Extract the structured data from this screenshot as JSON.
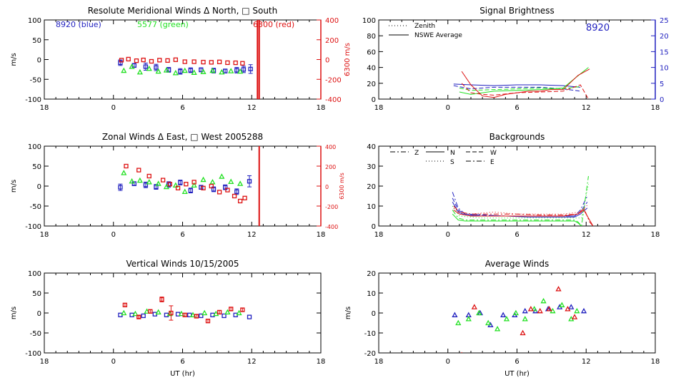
{
  "colors": {
    "blue": "#1f1fbf",
    "green": "#22e022",
    "red": "#dd1111",
    "axis": "#000000",
    "background": "#ffffff"
  },
  "chart_data": [
    {
      "id": "meridional",
      "type": "scatter",
      "title": "Resolute Meridional Winds Δ North, □ South",
      "xlabel": "",
      "ylabel": "m/s",
      "xlim": [
        18,
        42
      ],
      "x_tick_values": [
        18,
        24,
        30,
        36,
        42
      ],
      "x_tick_labels": [
        "18",
        "0",
        "6",
        "12",
        "18"
      ],
      "ylim": [
        -100,
        100
      ],
      "y_tick_values": [
        -100,
        -50,
        0,
        50,
        100
      ],
      "y2label": "6300 m/s",
      "y2lim": [
        -400,
        400
      ],
      "y2_tick_values": [
        -400,
        -200,
        0,
        200,
        400
      ],
      "y2_tick_labels": [
        "-400",
        "-200",
        "0",
        "200",
        "400"
      ],
      "legend_texts": [
        {
          "text": "8920 (blue)",
          "color": "blue"
        },
        {
          "text": "5577 (green)",
          "color": "green"
        },
        {
          "text": "6300 (red)",
          "color": "red"
        }
      ],
      "series": [
        {
          "color": "blue",
          "x": [
            24.6,
            25.8,
            26.8,
            27.7,
            28.8,
            29.8,
            30.7,
            31.6,
            32.7,
            33.7,
            34.7,
            35.3,
            35.9
          ],
          "y": [
            -8,
            -15,
            -18,
            -20,
            -26,
            -30,
            -27,
            -26,
            -28,
            -29,
            -27,
            -25,
            -24
          ],
          "err": [
            7,
            5,
            9,
            8,
            6,
            7,
            6,
            5,
            6,
            5,
            7,
            8,
            11
          ]
        },
        {
          "color": "green",
          "x": [
            24.9,
            25.6,
            26.3,
            27.1,
            27.9,
            28.6,
            29.4,
            30.2,
            31.0,
            31.8,
            32.6,
            33.4,
            34.2,
            35.0
          ],
          "y": [
            -28,
            -18,
            -32,
            -23,
            -30,
            -27,
            -34,
            -28,
            -33,
            -31,
            -28,
            -32,
            -29,
            -30
          ]
        },
        {
          "color": "red",
          "x": [
            24.7,
            25.3,
            26.0,
            26.6,
            27.3,
            28.0,
            28.7,
            29.4,
            30.2,
            31.0,
            31.8,
            32.5,
            33.2,
            33.9,
            34.6,
            35.2
          ],
          "y": [
            -6,
            4,
            -12,
            -4,
            -18,
            -6,
            -10,
            -2,
            -22,
            -22,
            -26,
            -28,
            -24,
            -32,
            -33,
            -38
          ]
        }
      ],
      "vlines": [
        {
          "x": 36.5,
          "color": "red"
        },
        {
          "x": 36.65,
          "color": "red"
        }
      ]
    },
    {
      "id": "zonal",
      "type": "scatter",
      "title": "Zonal Winds Δ East, □ West 2005288",
      "xlabel": "",
      "ylabel": "m/s",
      "xlim": [
        18,
        42
      ],
      "x_tick_values": [
        18,
        24,
        30,
        36,
        42
      ],
      "x_tick_labels": [
        "18",
        "0",
        "6",
        "12",
        "18"
      ],
      "ylim": [
        -100,
        100
      ],
      "y_tick_values": [
        -100,
        -50,
        0,
        50,
        100
      ],
      "y2label": "6300 m/s",
      "y2lim": [
        -400,
        400
      ],
      "y2_tick_values": [
        -400,
        -200,
        0,
        200,
        400
      ],
      "y2_tick_labels": [
        "-400",
        "-200",
        "0",
        "200",
        "400"
      ],
      "series": [
        {
          "color": "blue",
          "x": [
            24.6,
            25.8,
            26.8,
            27.7,
            28.8,
            29.8,
            30.7,
            31.6,
            32.7,
            33.7,
            34.7,
            35.8
          ],
          "y": [
            -3,
            6,
            3,
            -2,
            4,
            9,
            -11,
            -3,
            -8,
            -3,
            -14,
            12
          ],
          "err": [
            8,
            5,
            7,
            6,
            7,
            6,
            6,
            5,
            6,
            6,
            7,
            14
          ]
        },
        {
          "color": "green",
          "x": [
            24.9,
            25.6,
            26.3,
            27.1,
            27.9,
            28.6,
            29.4,
            30.2,
            31.0,
            31.8,
            32.6,
            33.4,
            34.2,
            35.0
          ],
          "y": [
            33,
            12,
            14,
            10,
            6,
            -2,
            2,
            -14,
            2,
            16,
            10,
            24,
            11,
            6
          ]
        },
        {
          "color": "red",
          "x": [
            25.1,
            26.2,
            27.1,
            28.3,
            28.9,
            29.6,
            30.3,
            31.0,
            31.8,
            32.5,
            33.2,
            33.9,
            34.5,
            35.0,
            35.4
          ],
          "y": [
            200,
            160,
            100,
            60,
            20,
            -20,
            20,
            40,
            -20,
            0,
            -60,
            -40,
            -100,
            -150,
            -120
          ]
        }
      ],
      "vlines": [
        {
          "x": 36.65,
          "color": "red"
        }
      ]
    },
    {
      "id": "vertical",
      "type": "scatter",
      "title": "Vertical Winds 10/15/2005",
      "xlabel": "UT (hr)",
      "ylabel": "m/s",
      "xlim": [
        18,
        42
      ],
      "x_tick_values": [
        18,
        24,
        30,
        36,
        42
      ],
      "x_tick_labels": [
        "18",
        "0",
        "6",
        "12",
        "18"
      ],
      "ylim": [
        -100,
        100
      ],
      "y_tick_values": [
        -100,
        -50,
        0,
        50,
        100
      ],
      "series": [
        {
          "color": "blue",
          "x": [
            24.6,
            25.6,
            26.6,
            27.6,
            28.6,
            29.6,
            30.6,
            31.6,
            32.6,
            33.6,
            34.6,
            35.8
          ],
          "y": [
            -5,
            -5,
            -7,
            -3,
            -5,
            -3,
            -5,
            -7,
            -5,
            -7,
            -5,
            -10
          ]
        },
        {
          "color": "green",
          "x": [
            24.9,
            25.9,
            26.9,
            27.9,
            28.9,
            29.9,
            30.9,
            31.9,
            32.9,
            33.9,
            34.9
          ],
          "y": [
            0,
            -2,
            4,
            2,
            -2,
            -2,
            -5,
            0,
            -2,
            2,
            0
          ]
        },
        {
          "color": "red",
          "x": [
            25.0,
            26.2,
            27.2,
            28.2,
            29.0,
            30.2,
            31.2,
            32.2,
            33.2,
            34.2,
            35.2
          ],
          "y": [
            20,
            -10,
            4,
            34,
            0,
            -5,
            -8,
            -20,
            2,
            10,
            8
          ],
          "err": [
            4,
            3,
            4,
            6,
            18,
            4,
            4,
            4,
            4,
            4,
            4
          ]
        }
      ]
    },
    {
      "id": "brightness",
      "type": "line",
      "title": "Signal Brightness",
      "xlabel": "",
      "ylabel": "",
      "xlim": [
        18,
        42
      ],
      "x_tick_values": [
        18,
        24,
        30,
        36,
        42
      ],
      "x_tick_labels": [
        "18",
        "0",
        "6",
        "12",
        "18"
      ],
      "ylim": [
        0,
        100
      ],
      "y_tick_values": [
        0,
        20,
        40,
        60,
        80,
        100
      ],
      "y2lim": [
        0,
        25
      ],
      "y2_tick_values": [
        0,
        5,
        10,
        15,
        20,
        25
      ],
      "y2_tick_labels": [
        "0",
        "5",
        "10",
        "15",
        "20",
        "25"
      ],
      "legend": [
        "Zenith",
        "NSWE Average"
      ],
      "annotation": "8920",
      "series": [
        {
          "color": "blue",
          "dash": false,
          "x": [
            24.5,
            26,
            28,
            30,
            32,
            34,
            35.5
          ],
          "y": [
            19,
            18,
            17,
            18,
            18,
            17,
            15
          ]
        },
        {
          "color": "blue",
          "dash": true,
          "x": [
            24.5,
            26,
            28,
            30,
            32,
            34,
            35.5
          ],
          "y": [
            17,
            13,
            15,
            15,
            15,
            13,
            10
          ]
        },
        {
          "color": "green",
          "dash": false,
          "x": [
            25,
            26,
            28,
            30,
            32,
            34,
            35,
            36.2
          ],
          "y": [
            9,
            6,
            10,
            11,
            12,
            14,
            26,
            40
          ]
        },
        {
          "color": "green",
          "dash": true,
          "x": [
            25,
            26,
            28,
            30,
            32,
            34,
            35.5
          ],
          "y": [
            14,
            11,
            12,
            13,
            14,
            13,
            16
          ]
        },
        {
          "color": "red",
          "dash": false,
          "x": [
            25.2,
            26,
            27,
            28,
            29,
            30,
            31,
            32,
            33,
            34,
            35.3,
            36.3
          ],
          "y": [
            35,
            18,
            4,
            2,
            6,
            8,
            10,
            10,
            12,
            12,
            30,
            38
          ]
        },
        {
          "color": "red",
          "dash": true,
          "x": [
            25.2,
            26,
            27,
            28,
            30,
            32,
            34,
            35.5,
            36.2
          ],
          "y": [
            20,
            8,
            6,
            5,
            8,
            9,
            10,
            18,
            0
          ]
        }
      ]
    },
    {
      "id": "backgrounds",
      "type": "line",
      "title": "Backgrounds",
      "xlabel": "",
      "ylabel": "",
      "xlim": [
        18,
        42
      ],
      "x_tick_values": [
        18,
        24,
        30,
        36,
        42
      ],
      "x_tick_labels": [
        "18",
        "0",
        "6",
        "12",
        "18"
      ],
      "ylim": [
        0,
        40
      ],
      "y_tick_values": [
        0,
        10,
        20,
        30,
        40
      ],
      "legend": [
        "Z",
        "N",
        "W",
        "S",
        "E"
      ],
      "series": [
        {
          "color": "blue",
          "dash": "7,3,2,3",
          "x": [
            24.4,
            24.9,
            25.5,
            27,
            29,
            31,
            33,
            35,
            35.5,
            36.1
          ],
          "y": [
            17,
            9,
            6,
            5.5,
            5,
            5,
            5,
            5,
            8,
            15
          ]
        },
        {
          "color": "blue",
          "dash": "",
          "x": [
            24.4,
            24.9,
            25.5,
            27,
            29,
            31,
            33,
            35,
            35.5,
            36.1
          ],
          "y": [
            12,
            7,
            5.5,
            5,
            5,
            4.5,
            4.5,
            4.5,
            6,
            9
          ]
        },
        {
          "color": "blue",
          "dash": "6,3",
          "x": [
            24.4,
            24.9,
            25.5,
            27,
            29,
            31,
            33,
            35,
            35.5,
            36.1
          ],
          "y": [
            14,
            8,
            6,
            5.5,
            5,
            5,
            5,
            5,
            7,
            12
          ]
        },
        {
          "color": "green",
          "dash": "7,3,2,3",
          "x": [
            24.4,
            24.9,
            25.5,
            27,
            29,
            31,
            33,
            35,
            35.3,
            35.6,
            36.2
          ],
          "y": [
            8,
            4,
            3,
            3,
            3,
            3,
            3,
            3,
            2,
            0,
            25
          ]
        },
        {
          "color": "green",
          "dash": "",
          "x": [
            24.4,
            24.9,
            25.5,
            27,
            29,
            31,
            33,
            35,
            35.3,
            35.6
          ],
          "y": [
            6,
            3,
            2.5,
            2.5,
            2.5,
            2.5,
            2.5,
            2.5,
            1.5,
            0
          ]
        },
        {
          "color": "green",
          "dash": "1,3",
          "x": [
            24.4,
            25,
            27,
            29,
            31,
            33,
            35,
            35.6,
            36.2
          ],
          "y": [
            10,
            5,
            4,
            4,
            4,
            4,
            4,
            4,
            21
          ]
        },
        {
          "color": "red",
          "dash": "7,3,2,3",
          "x": [
            24.5,
            25,
            26,
            28,
            30,
            32,
            34,
            35.3,
            35.8,
            36.3,
            36.6
          ],
          "y": [
            10,
            7,
            6,
            6,
            6,
            5.5,
            5.5,
            6,
            9,
            2,
            0
          ]
        },
        {
          "color": "red",
          "dash": "",
          "x": [
            24.5,
            25,
            26,
            28,
            30,
            32,
            34,
            35.3,
            35.8,
            36.3,
            36.6
          ],
          "y": [
            8,
            6,
            5,
            5,
            5,
            5,
            5,
            6,
            8,
            3,
            0
          ]
        },
        {
          "color": "red",
          "dash": "1,3",
          "x": [
            24.5,
            25,
            26,
            28,
            30,
            32,
            34,
            35.5,
            36.2
          ],
          "y": [
            9,
            7,
            6,
            7,
            6,
            6,
            6,
            7,
            11
          ]
        }
      ]
    },
    {
      "id": "average",
      "type": "scatter",
      "title": "Average Winds",
      "xlabel": "UT (hr)",
      "ylabel": "m/s",
      "xlim": [
        18,
        42
      ],
      "x_tick_values": [
        18,
        24,
        30,
        36,
        42
      ],
      "x_tick_labels": [
        "18",
        "0",
        "6",
        "12",
        "18"
      ],
      "ylim": [
        -20,
        20
      ],
      "y_tick_values": [
        -20,
        -10,
        0,
        10,
        20
      ],
      "series": [
        {
          "color": "blue",
          "x": [
            24.6,
            25.8,
            26.8,
            27.7,
            28.8,
            29.8,
            30.7,
            31.6,
            32.7,
            33.7,
            34.7,
            35.8
          ],
          "y": [
            -1,
            -1,
            0,
            -6,
            -1,
            -1,
            1,
            1,
            2,
            3,
            3,
            1
          ]
        },
        {
          "color": "green",
          "x": [
            24.9,
            25.8,
            26.7,
            27.5,
            28.3,
            29.1,
            29.9,
            30.7,
            31.5,
            32.3,
            33.1,
            33.9,
            34.7,
            35.2
          ],
          "y": [
            -5,
            -3,
            0,
            -5,
            -8,
            -3,
            0,
            -3,
            2,
            6,
            1,
            4,
            -3,
            1
          ]
        },
        {
          "color": "red",
          "x": [
            25.2,
            26.3,
            30.5,
            31.2,
            32.0,
            32.8,
            33.6,
            34.4,
            35.0
          ],
          "y": [
            -21,
            3,
            -10,
            2,
            1,
            2,
            12,
            2,
            -2
          ]
        }
      ]
    }
  ]
}
